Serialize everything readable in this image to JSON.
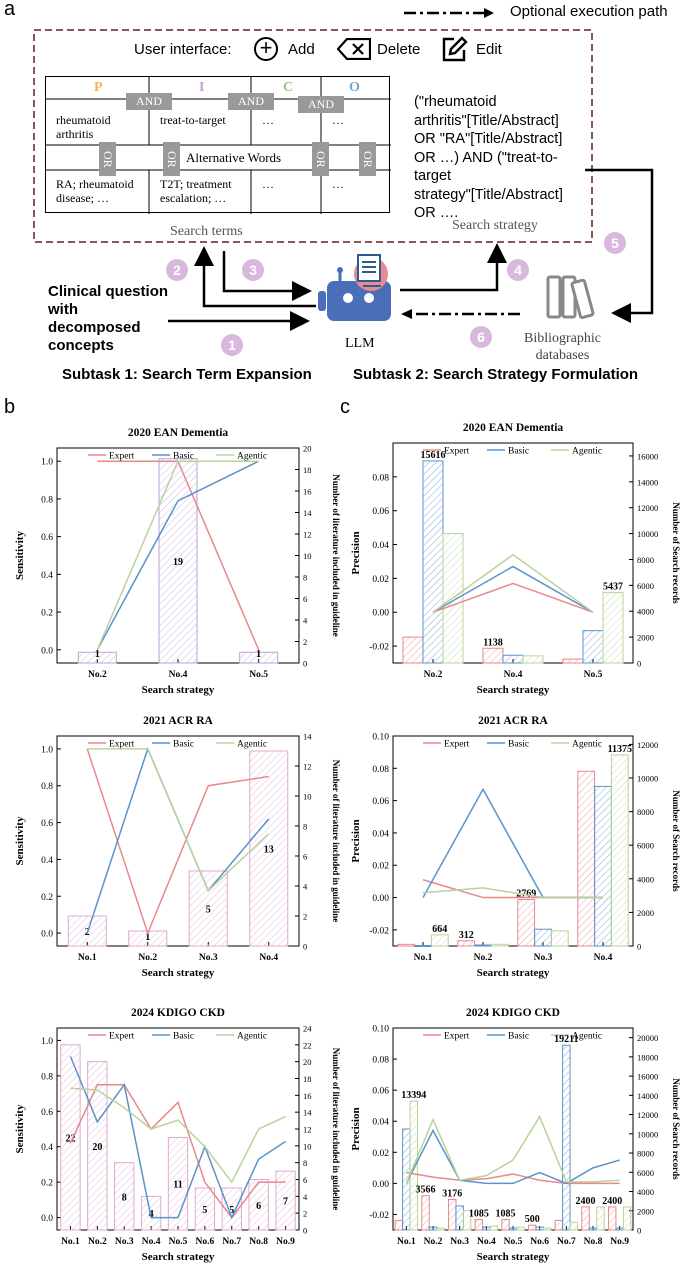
{
  "panel_a": {
    "letter": "a",
    "legend_optional": "Optional execution path",
    "ui_label": "User interface:",
    "ui_add": "Add",
    "ui_delete": "Delete",
    "ui_edit": "Edit",
    "pico": [
      "P",
      "I",
      "C",
      "O"
    ],
    "pico_colors": [
      "#f2b35a",
      "#c9a0d6",
      "#9cc47a",
      "#6aa9d8"
    ],
    "and_label": "AND",
    "or_label": "OR",
    "alternative_words": "Alternative Words",
    "row1": [
      "rheumatoid arthritis",
      "treat-to-target",
      "…",
      "…"
    ],
    "row2": [
      "RA; rheumatoid disease; …",
      "T2T; treatment escalation; …",
      "…",
      "…"
    ],
    "search_terms_label": "Search terms",
    "query_lines": [
      "(\"rheumatoid",
      "arthritis\"[Title/Abstract]",
      "OR \"RA\"[Title/Abstract]",
      "OR  …) AND (\"treat-to-",
      "target",
      "strategy\"[Title/Abstract]",
      "OR …."
    ],
    "search_strategy_label": "Search strategy",
    "clinical_question": [
      "Clinical question",
      "with",
      "decomposed",
      "concepts"
    ],
    "llm_label": "LLM",
    "bib_label": [
      "Bibliographic",
      "databases"
    ],
    "subtask1": "Subtask 1: Search Term Expansion",
    "subtask2": "Subtask 2: Search Strategy Formulation",
    "steps": [
      "1",
      "2",
      "3",
      "4",
      "5",
      "6"
    ]
  },
  "panel_b_letter": "b",
  "panel_c_letter": "c",
  "series_colors": {
    "Expert": "#e8888b",
    "Basic": "#5b93c9",
    "Agentic": "#b9d39a"
  },
  "chart_data": [
    {
      "id": "b1",
      "type": "bar+line",
      "title": "2020 EAN Dementia",
      "xlabel": "Search strategy",
      "ylabel": "Sensitivity",
      "y2label": "Number of literature included in guideline",
      "categories": [
        "No.2",
        "No.4",
        "No.5"
      ],
      "ylim": [
        -0.07,
        1.07
      ],
      "yticks": [
        0.0,
        0.2,
        0.4,
        0.6,
        0.8,
        1.0
      ],
      "y2lim": [
        0,
        20
      ],
      "y2ticks": [
        0,
        2,
        4,
        6,
        8,
        10,
        12,
        14,
        16,
        18,
        20
      ],
      "bar_values": [
        1,
        19,
        1
      ],
      "bar_color": "#b9a3d8",
      "series": [
        {
          "name": "Expert",
          "values": [
            1.0,
            1.0,
            0.0
          ]
        },
        {
          "name": "Basic",
          "values": [
            0.0,
            0.79,
            1.0
          ]
        },
        {
          "name": "Agentic",
          "values": [
            0.0,
            1.0,
            1.0
          ]
        }
      ]
    },
    {
      "id": "b2",
      "type": "bar+line",
      "title": "2021 ACR RA",
      "xlabel": "Search strategy",
      "ylabel": "Sensitivity",
      "y2label": "Number of literature included in guideline",
      "categories": [
        "No.1",
        "No.2",
        "No.3",
        "No.4"
      ],
      "ylim": [
        -0.07,
        1.07
      ],
      "yticks": [
        0.0,
        0.2,
        0.4,
        0.6,
        0.8,
        1.0
      ],
      "y2lim": [
        0,
        14
      ],
      "y2ticks": [
        0,
        2,
        4,
        6,
        8,
        10,
        12,
        14
      ],
      "bar_values": [
        2,
        1,
        5,
        13
      ],
      "bar_color": "#e0a8d0",
      "series": [
        {
          "name": "Expert",
          "values": [
            1.0,
            0.0,
            0.8,
            0.85
          ]
        },
        {
          "name": "Basic",
          "values": [
            0.0,
            1.0,
            0.23,
            0.62
          ]
        },
        {
          "name": "Agentic",
          "values": [
            1.0,
            1.0,
            0.23,
            0.54
          ]
        }
      ]
    },
    {
      "id": "b3",
      "type": "bar+line",
      "title": "2024 KDIGO CKD",
      "xlabel": "Search strategy",
      "ylabel": "Sensitivity",
      "y2label": "Number of literature included in guideline",
      "categories": [
        "No.1",
        "No.2",
        "No.3",
        "No.4",
        "No.5",
        "No.6",
        "No.7",
        "No.8",
        "No.9"
      ],
      "ylim": [
        -0.07,
        1.07
      ],
      "yticks": [
        0.0,
        0.2,
        0.4,
        0.6,
        0.8,
        1.0
      ],
      "y2lim": [
        0,
        24
      ],
      "y2ticks": [
        0,
        2,
        4,
        6,
        8,
        10,
        12,
        14,
        16,
        18,
        20,
        22,
        24
      ],
      "bar_values": [
        22,
        20,
        8,
        4,
        11,
        5,
        5,
        6,
        7
      ],
      "bar_color": "#e0a8d0",
      "series": [
        {
          "name": "Expert",
          "values": [
            0.42,
            0.75,
            0.75,
            0.5,
            0.65,
            0.2,
            0.0,
            0.2,
            0.2
          ]
        },
        {
          "name": "Basic",
          "values": [
            0.91,
            0.54,
            0.75,
            0.0,
            0.0,
            0.4,
            0.0,
            0.33,
            0.43
          ]
        },
        {
          "name": "Agentic",
          "values": [
            0.73,
            0.72,
            0.62,
            0.5,
            0.55,
            0.4,
            0.2,
            0.5,
            0.57
          ]
        }
      ]
    },
    {
      "id": "c1",
      "type": "grouped-bar+line",
      "title": "2020 EAN Dementia",
      "xlabel": "Search strategy",
      "ylabel": "Precision",
      "y2label": "Number of Search records",
      "categories": [
        "No.2",
        "No.4",
        "No.5"
      ],
      "ylim": [
        -0.03,
        0.1
      ],
      "yticks": [
        -0.02,
        0.0,
        0.02,
        0.04,
        0.06,
        0.08
      ],
      "y2lim": [
        0,
        17000
      ],
      "y2ticks": [
        0,
        2000,
        4000,
        6000,
        8000,
        10000,
        12000,
        14000,
        16000
      ],
      "bar_series": [
        {
          "name": "Expert",
          "values": [
            2000,
            1138,
            300
          ]
        },
        {
          "name": "Basic",
          "values": [
            15616,
            600,
            2500
          ]
        },
        {
          "name": "Agentic",
          "values": [
            10000,
            550,
            5437
          ]
        }
      ],
      "bar_labels": [
        {
          "index": 0,
          "series": "Basic",
          "text": "15616"
        },
        {
          "index": 1,
          "series": "Expert",
          "text": "1138"
        },
        {
          "index": 2,
          "series": "Agentic",
          "text": "5437"
        }
      ],
      "series": [
        {
          "name": "Expert",
          "values": [
            0.0,
            0.017,
            0.0
          ]
        },
        {
          "name": "Basic",
          "values": [
            0.0,
            0.027,
            0.0
          ]
        },
        {
          "name": "Agentic",
          "values": [
            0.0,
            0.034,
            0.0
          ]
        }
      ]
    },
    {
      "id": "c2",
      "type": "grouped-bar+line",
      "title": "2021 ACR RA",
      "xlabel": "Search strategy",
      "ylabel": "Precision",
      "y2label": "Number of Search records",
      "categories": [
        "No.1",
        "No.2",
        "No.3",
        "No.4"
      ],
      "ylim": [
        -0.03,
        0.1
      ],
      "yticks": [
        -0.02,
        0.0,
        0.02,
        0.04,
        0.06,
        0.08,
        0.1
      ],
      "y2lim": [
        0,
        12500
      ],
      "y2ticks": [
        0,
        2000,
        4000,
        6000,
        8000,
        10000,
        12000
      ],
      "bar_series": [
        {
          "name": "Expert",
          "values": [
            100,
            312,
            2769,
            10400
          ]
        },
        {
          "name": "Basic",
          "values": [
            30,
            60,
            1000,
            9500
          ]
        },
        {
          "name": "Agentic",
          "values": [
            664,
            100,
            900,
            11375
          ]
        }
      ],
      "bar_labels": [
        {
          "index": 0,
          "series": "Agentic",
          "text": "664"
        },
        {
          "index": 1,
          "series": "Expert",
          "text": "312"
        },
        {
          "index": 2,
          "series": "Expert",
          "text": "2769"
        },
        {
          "index": 3,
          "series": "Agentic",
          "text": "11375"
        }
      ],
      "series": [
        {
          "name": "Expert",
          "values": [
            0.011,
            0.0,
            0.0,
            0.0
          ]
        },
        {
          "name": "Basic",
          "values": [
            0.0,
            0.067,
            0.0,
            0.0
          ]
        },
        {
          "name": "Agentic",
          "values": [
            0.003,
            0.006,
            0.0,
            0.0
          ]
        }
      ]
    },
    {
      "id": "c3",
      "type": "grouped-bar+line",
      "title": "2024 KDIGO CKD",
      "xlabel": "Search strategy",
      "ylabel": "Precision",
      "y2label": "Number of Search records",
      "categories": [
        "No.1",
        "No.2",
        "No.3",
        "No.4",
        "No.5",
        "No.6",
        "No.7",
        "No.8",
        "No.9"
      ],
      "ylim": [
        -0.03,
        0.1
      ],
      "yticks": [
        -0.02,
        0.0,
        0.02,
        0.04,
        0.06,
        0.08,
        0.1
      ],
      "y2lim": [
        0,
        21000
      ],
      "y2ticks": [
        0,
        2000,
        4000,
        6000,
        8000,
        10000,
        12000,
        14000,
        16000,
        18000,
        20000
      ],
      "bar_series": [
        {
          "name": "Expert",
          "values": [
            1000,
            3566,
            3176,
            1085,
            1085,
            500,
            1000,
            2400,
            2400
          ]
        },
        {
          "name": "Basic",
          "values": [
            10500,
            300,
            2500,
            300,
            200,
            300,
            19211,
            200,
            200
          ]
        },
        {
          "name": "Agentic",
          "values": [
            13394,
            200,
            2000,
            400,
            300,
            200,
            800,
            2400,
            2400
          ]
        }
      ],
      "bar_labels": [
        {
          "index": 0,
          "series": "Agentic",
          "text": "13394"
        },
        {
          "index": 1,
          "series": "Expert",
          "text": "3566"
        },
        {
          "index": 2,
          "series": "Expert",
          "text": "3176"
        },
        {
          "index": 3,
          "series": "Expert",
          "text": "1085"
        },
        {
          "index": 4,
          "series": "Expert",
          "text": "1085"
        },
        {
          "index": 5,
          "series": "Expert",
          "text": "500"
        },
        {
          "index": 6,
          "series": "Basic",
          "text": "19211"
        },
        {
          "index": 7,
          "series": "Expert",
          "text": "2400"
        },
        {
          "index": 8,
          "series": "Expert",
          "text": "2400"
        }
      ],
      "series": [
        {
          "name": "Expert",
          "values": [
            0.007,
            0.004,
            0.002,
            0.003,
            0.006,
            0.002,
            0.0,
            0.0,
            0.0
          ]
        },
        {
          "name": "Basic",
          "values": [
            0.0,
            0.034,
            0.002,
            0.0,
            0.0,
            0.007,
            0.0,
            0.01,
            0.015
          ]
        },
        {
          "name": "Agentic",
          "values": [
            0.0,
            0.041,
            0.002,
            0.005,
            0.015,
            0.043,
            0.001,
            0.001,
            0.002
          ]
        }
      ]
    }
  ]
}
